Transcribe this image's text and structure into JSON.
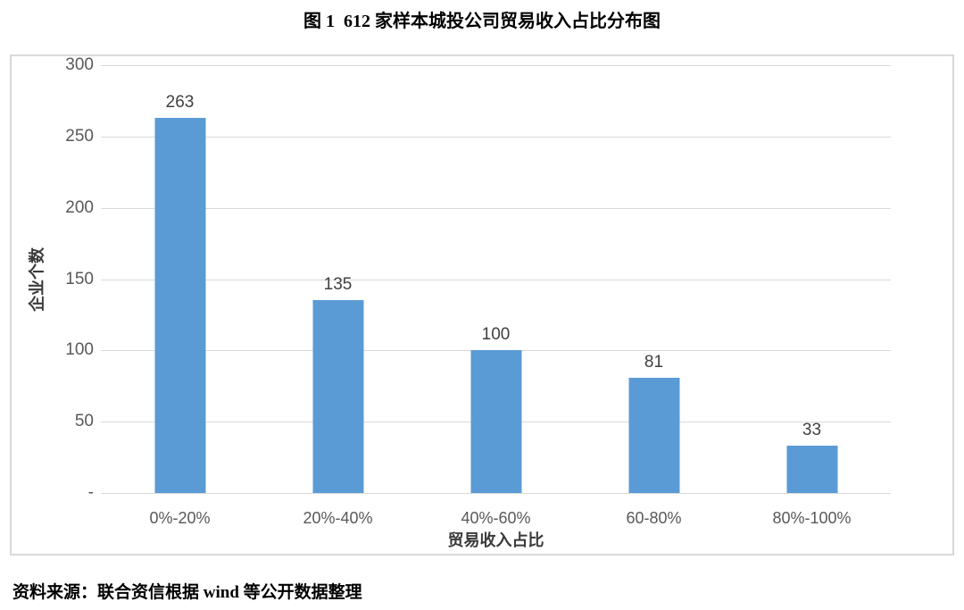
{
  "figure": {
    "title": "图 1  612 家样本城投公司贸易收入占比分布图"
  },
  "source_note": "资料来源：联合资信根据 wind 等公开数据整理",
  "colors": {
    "bar": "#5b9bd5",
    "gridline": "#d9d9d9",
    "chart_border": "#d9d9d9",
    "tick_text": "#595959",
    "value_label": "#404040"
  },
  "chart_data": {
    "type": "bar",
    "title": "图 1  612 家样本城投公司贸易收入占比分布图",
    "categories": [
      "0%-20%",
      "20%-40%",
      "40%-60%",
      "60-80%",
      "80%-100%"
    ],
    "values": [
      263,
      135,
      100,
      81,
      33
    ],
    "xlabel": "贸易收入占比",
    "ylabel": "企业个数",
    "ylim": [
      0,
      300
    ],
    "ytick_interval": 50,
    "ytick_labels_top_to_bottom": [
      "300",
      "250",
      "200",
      "150",
      "100",
      "50",
      "-"
    ],
    "grid": true,
    "legend": false,
    "bar_color": "#5b9bd5",
    "data_labels": true
  }
}
